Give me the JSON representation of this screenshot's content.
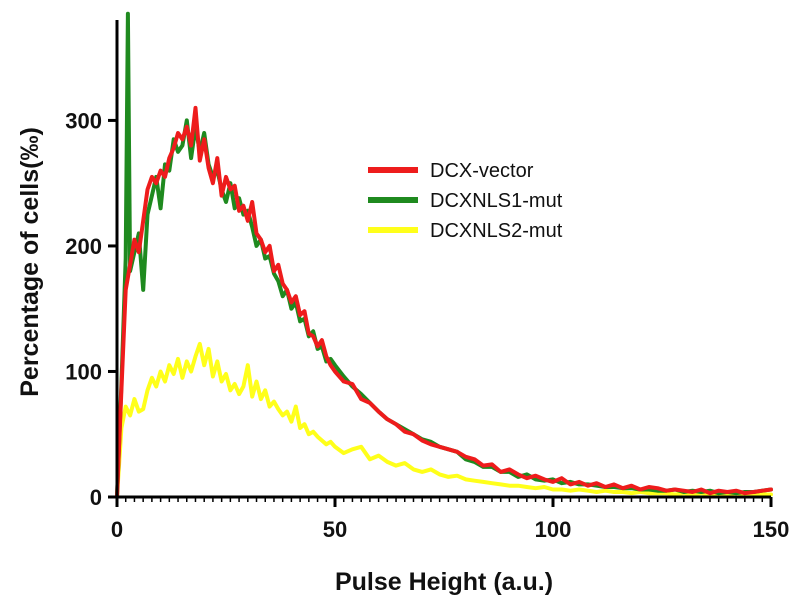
{
  "chart_data": {
    "type": "line",
    "title": "",
    "xlabel": "Pulse Height (a.u.)",
    "ylabel": "Percentage of cells(‰)",
    "xlim": [
      0,
      150
    ],
    "ylim": [
      0,
      380
    ],
    "x_ticks": [
      0,
      50,
      100,
      150
    ],
    "y_ticks": [
      0,
      100,
      200,
      300
    ],
    "grid": false,
    "legend_position": "upper-right",
    "series": [
      {
        "name": "DCX-vector",
        "color": "#ee1c1c",
        "x": [
          0,
          1,
          2,
          3,
          4,
          5,
          6,
          7,
          8,
          9,
          10,
          11,
          12,
          13,
          14,
          15,
          16,
          17,
          18,
          19,
          20,
          21,
          22,
          23,
          24,
          25,
          26,
          27,
          28,
          29,
          30,
          31,
          32,
          33,
          34,
          35,
          36,
          37,
          38,
          39,
          40,
          41,
          42,
          43,
          44,
          45,
          46,
          47,
          48,
          49,
          50,
          52,
          54,
          56,
          58,
          60,
          62,
          64,
          66,
          68,
          70,
          72,
          74,
          76,
          78,
          80,
          82,
          84,
          86,
          88,
          90,
          92,
          94,
          96,
          98,
          100,
          102,
          104,
          106,
          108,
          110,
          112,
          114,
          116,
          118,
          120,
          122,
          124,
          126,
          128,
          130,
          132,
          134,
          136,
          138,
          140,
          142,
          144,
          146,
          148,
          150
        ],
        "values": [
          0,
          85,
          165,
          185,
          205,
          195,
          220,
          245,
          255,
          250,
          260,
          255,
          270,
          278,
          290,
          285,
          295,
          280,
          310,
          268,
          285,
          262,
          250,
          270,
          240,
          255,
          245,
          248,
          228,
          232,
          220,
          235,
          210,
          205,
          195,
          200,
          180,
          185,
          170,
          165,
          155,
          160,
          145,
          148,
          130,
          128,
          120,
          125,
          112,
          105,
          100,
          92,
          90,
          78,
          75,
          68,
          62,
          58,
          52,
          50,
          45,
          42,
          40,
          38,
          36,
          32,
          30,
          25,
          26,
          20,
          22,
          18,
          15,
          17,
          14,
          12,
          15,
          10,
          12,
          9,
          11,
          8,
          10,
          7,
          9,
          6,
          8,
          7,
          5,
          6,
          5,
          4,
          6,
          3,
          5,
          4,
          5,
          3,
          4,
          5,
          6
        ]
      },
      {
        "name": "DCXNLS1-mut",
        "color": "#1f8a1f",
        "x": [
          0,
          1,
          2,
          2.5,
          3,
          4,
          5,
          6,
          7,
          8,
          9,
          10,
          11,
          12,
          13,
          14,
          15,
          16,
          17,
          18,
          19,
          20,
          21,
          22,
          23,
          24,
          25,
          26,
          27,
          28,
          29,
          30,
          31,
          32,
          33,
          34,
          35,
          36,
          37,
          38,
          39,
          40,
          41,
          42,
          43,
          44,
          45,
          46,
          47,
          48,
          49,
          50,
          52,
          54,
          56,
          58,
          60,
          62,
          64,
          66,
          68,
          70,
          72,
          74,
          76,
          78,
          80,
          82,
          84,
          86,
          88,
          90,
          92,
          94,
          96,
          98,
          100,
          102,
          104,
          106,
          108,
          110,
          112,
          114,
          116,
          118,
          120,
          122,
          124,
          126,
          128,
          130,
          132,
          134,
          136,
          138,
          140,
          142,
          144,
          146,
          148,
          150
        ],
        "values": [
          0,
          90,
          190,
          385,
          180,
          195,
          210,
          165,
          225,
          240,
          255,
          230,
          265,
          260,
          285,
          275,
          280,
          300,
          270,
          295,
          275,
          290,
          265,
          255,
          260,
          245,
          235,
          250,
          230,
          238,
          225,
          228,
          215,
          200,
          205,
          190,
          192,
          178,
          172,
          160,
          165,
          150,
          155,
          140,
          142,
          128,
          132,
          118,
          120,
          108,
          110,
          105,
          96,
          88,
          82,
          75,
          68,
          62,
          58,
          54,
          50,
          46,
          44,
          40,
          38,
          36,
          30,
          28,
          24,
          24,
          20,
          20,
          16,
          18,
          14,
          13,
          14,
          11,
          12,
          10,
          10,
          9,
          8,
          8,
          7,
          7,
          6,
          6,
          5,
          5,
          6,
          4,
          5,
          4,
          5,
          3,
          4,
          3,
          4,
          4,
          5,
          6
        ]
      },
      {
        "name": "DCXNLS2-mut",
        "color": "#ffff1a",
        "x": [
          0,
          1,
          2,
          3,
          4,
          5,
          6,
          7,
          8,
          9,
          10,
          11,
          12,
          13,
          14,
          15,
          16,
          17,
          18,
          19,
          20,
          21,
          22,
          23,
          24,
          25,
          26,
          27,
          28,
          29,
          30,
          31,
          32,
          33,
          34,
          35,
          36,
          37,
          38,
          39,
          40,
          41,
          42,
          43,
          44,
          45,
          46,
          47,
          48,
          49,
          50,
          52,
          54,
          56,
          58,
          60,
          62,
          64,
          66,
          68,
          70,
          72,
          74,
          76,
          78,
          80,
          82,
          84,
          86,
          88,
          90,
          92,
          94,
          96,
          98,
          100,
          102,
          104,
          106,
          108,
          110,
          112,
          114,
          116,
          118,
          120,
          122,
          124,
          126,
          128,
          130,
          132,
          134,
          136,
          138,
          140,
          142,
          144,
          146,
          148,
          150
        ],
        "values": [
          0,
          55,
          72,
          65,
          78,
          68,
          70,
          85,
          95,
          88,
          100,
          92,
          105,
          98,
          110,
          95,
          108,
          100,
          112,
          122,
          105,
          118,
          96,
          108,
          92,
          98,
          85,
          90,
          82,
          88,
          105,
          80,
          92,
          78,
          85,
          72,
          76,
          70,
          65,
          68,
          60,
          72,
          55,
          58,
          50,
          52,
          48,
          45,
          42,
          44,
          40,
          35,
          38,
          40,
          30,
          33,
          28,
          25,
          27,
          22,
          20,
          22,
          18,
          16,
          17,
          14,
          13,
          12,
          11,
          10,
          9,
          9,
          8,
          7,
          8,
          6,
          6,
          5,
          6,
          5,
          4,
          5,
          4,
          4,
          3,
          4,
          3,
          3,
          3,
          2,
          3,
          2,
          3,
          2,
          2,
          2,
          3,
          2,
          2,
          2,
          2
        ]
      }
    ]
  }
}
